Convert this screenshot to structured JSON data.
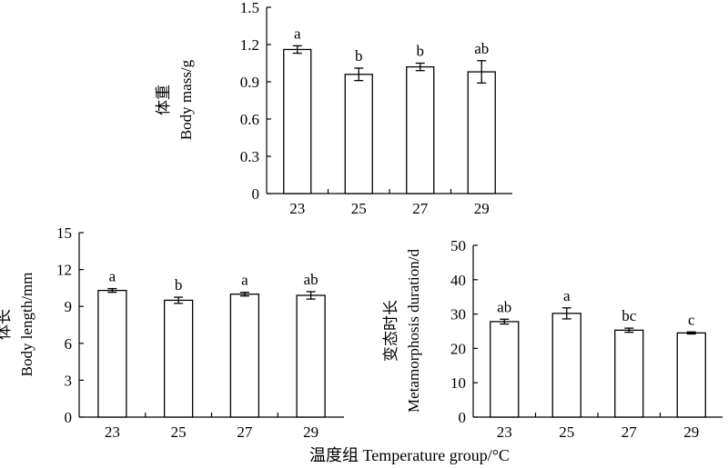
{
  "figure": {
    "xlabel": "温度组 Temperature group/°C"
  },
  "chart_data": [
    {
      "type": "bar",
      "ylabel_cn": "体重",
      "ylabel_en": "Body mass/g",
      "categories": [
        "23",
        "25",
        "27",
        "29"
      ],
      "values": [
        1.16,
        0.96,
        1.02,
        0.98
      ],
      "errors": [
        0.03,
        0.05,
        0.03,
        0.09
      ],
      "letters": [
        "a",
        "b",
        "b",
        "ab"
      ],
      "ylim": [
        0,
        1.5
      ],
      "yticks": [
        "0",
        "0.3",
        "0.6",
        "0.9",
        "1.2",
        "1.5"
      ]
    },
    {
      "type": "bar",
      "ylabel_cn": "体长",
      "ylabel_en": "Body length/mm",
      "categories": [
        "23",
        "25",
        "27",
        "29"
      ],
      "values": [
        10.3,
        9.5,
        10.0,
        9.9
      ],
      "errors": [
        0.15,
        0.25,
        0.15,
        0.3
      ],
      "letters": [
        "a",
        "b",
        "a",
        "ab"
      ],
      "ylim": [
        0,
        15
      ],
      "yticks": [
        "0",
        "3",
        "6",
        "9",
        "12",
        "15"
      ]
    },
    {
      "type": "bar",
      "ylabel_cn": "变态时长",
      "ylabel_en": "Metamorphosis duration/d",
      "categories": [
        "23",
        "25",
        "27",
        "29"
      ],
      "values": [
        27.8,
        30.2,
        25.3,
        24.5
      ],
      "errors": [
        0.7,
        1.6,
        0.6,
        0.3
      ],
      "letters": [
        "ab",
        "a",
        "bc",
        "c"
      ],
      "ylim": [
        0,
        50
      ],
      "yticks": [
        "0",
        "10",
        "20",
        "30",
        "40",
        "50"
      ]
    }
  ]
}
